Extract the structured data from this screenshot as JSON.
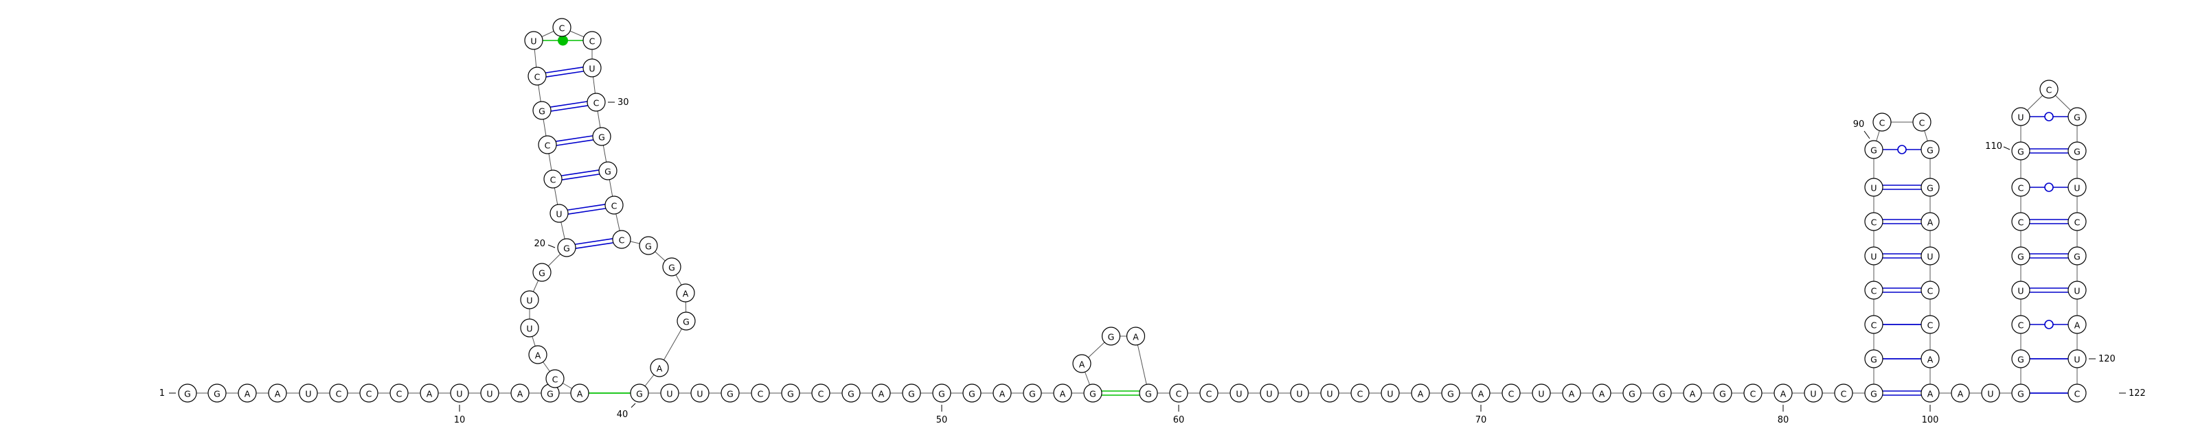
{
  "molecule": {
    "sequence": "GGAAUCCCAUUAGACAUUGGUCCGCUCCUCGGCCGGAGAGUUGCGCGAGGGAGAGAGAGCCUUUUCUAGACUAAGGAGCAUCGGCCUCUGCCGGAUCCAAAUGGCUGCCGUCGGUCGUAUC",
    "length": 122
  },
  "position_labels": [
    {
      "n": 1,
      "text": "1"
    },
    {
      "n": 10,
      "text": "10"
    },
    {
      "n": 20,
      "text": "20"
    },
    {
      "n": 30,
      "text": "30"
    },
    {
      "n": 40,
      "text": "40"
    },
    {
      "n": 50,
      "text": "50"
    },
    {
      "n": 60,
      "text": "60"
    },
    {
      "n": 70,
      "text": "70"
    },
    {
      "n": 80,
      "text": "80"
    },
    {
      "n": 90,
      "text": "90"
    },
    {
      "n": 100,
      "text": "100"
    },
    {
      "n": 110,
      "text": "110"
    },
    {
      "n": 120,
      "text": "120"
    },
    {
      "n": 122,
      "text": "122"
    }
  ],
  "base_pairs": [
    {
      "i": 14,
      "j": 40,
      "color": "#00c000",
      "style": "single"
    },
    {
      "i": 20,
      "j": 34,
      "color": "#0000cc",
      "style": "double"
    },
    {
      "i": 21,
      "j": 33,
      "color": "#0000cc",
      "style": "double"
    },
    {
      "i": 22,
      "j": 32,
      "color": "#0000cc",
      "style": "double"
    },
    {
      "i": 23,
      "j": 31,
      "color": "#0000cc",
      "style": "double"
    },
    {
      "i": 24,
      "j": 30,
      "color": "#0000cc",
      "style": "double"
    },
    {
      "i": 25,
      "j": 29,
      "color": "#0000cc",
      "style": "double"
    },
    {
      "i": 26,
      "j": 28,
      "color": "#00c000",
      "style": "dot"
    },
    {
      "i": 55,
      "j": 59,
      "color": "#00c000",
      "style": "double"
    },
    {
      "i": 83,
      "j": 100,
      "color": "#0000cc",
      "style": "double"
    },
    {
      "i": 84,
      "j": 99,
      "color": "#0000cc",
      "style": "single"
    },
    {
      "i": 85,
      "j": 98,
      "color": "#0000cc",
      "style": "single"
    },
    {
      "i": 86,
      "j": 97,
      "color": "#0000cc",
      "style": "double"
    },
    {
      "i": 87,
      "j": 96,
      "color": "#0000cc",
      "style": "double"
    },
    {
      "i": 88,
      "j": 95,
      "color": "#0000cc",
      "style": "double"
    },
    {
      "i": 89,
      "j": 94,
      "color": "#0000cc",
      "style": "double"
    },
    {
      "i": 90,
      "j": 93,
      "color": "#0000cc",
      "style": "circle"
    },
    {
      "i": 103,
      "j": 121,
      "color": "#0000cc",
      "style": "single"
    },
    {
      "i": 104,
      "j": 120,
      "color": "#0000cc",
      "style": "single"
    },
    {
      "i": 105,
      "j": 119,
      "color": "#0000cc",
      "style": "circle"
    },
    {
      "i": 106,
      "j": 118,
      "color": "#0000cc",
      "style": "double"
    },
    {
      "i": 107,
      "j": 117,
      "color": "#0000cc",
      "style": "double"
    },
    {
      "i": 108,
      "j": 116,
      "color": "#0000cc",
      "style": "double"
    },
    {
      "i": 109,
      "j": 115,
      "color": "#0000cc",
      "style": "circle"
    },
    {
      "i": 110,
      "j": 114,
      "color": "#0000cc",
      "style": "double"
    },
    {
      "i": 111,
      "j": 113,
      "color": "#0000cc",
      "style": "circle"
    }
  ],
  "colors": {
    "nucleotide_fill": "#ffffff",
    "nucleotide_stroke": "#000000",
    "backbone": "#555555",
    "canonical_pair": "#0000cc",
    "highlight_pair": "#00c000"
  }
}
